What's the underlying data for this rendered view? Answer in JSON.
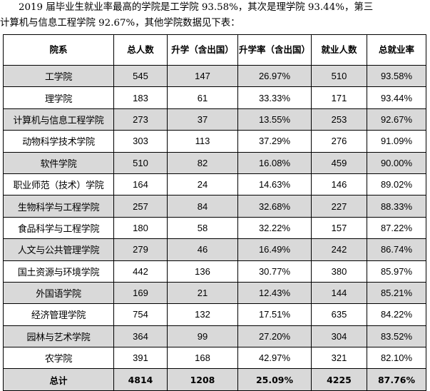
{
  "intro": {
    "line1": "2019 届毕业生就业率最高的学院是工学院 93.58%，其次是理学院 93.44%，第三",
    "line2": "计算机与信息工程学院 92.67%，其他学院数据见下表："
  },
  "table": {
    "headers": [
      "院系",
      "总人数",
      "升学（含出国）",
      "升学率（含出国）",
      "就业人数",
      "总就业率"
    ],
    "rows": [
      [
        "工学院",
        "545",
        "147",
        "26.97%",
        "510",
        "93.58%"
      ],
      [
        "理学院",
        "183",
        "61",
        "33.33%",
        "171",
        "93.44%"
      ],
      [
        "计算机与信息工程学院",
        "273",
        "37",
        "13.55%",
        "253",
        "92.67%"
      ],
      [
        "动物科学技术学院",
        "303",
        "113",
        "37.29%",
        "276",
        "91.09%"
      ],
      [
        "软件学院",
        "510",
        "82",
        "16.08%",
        "459",
        "90.00%"
      ],
      [
        "职业师范（技术）学院",
        "164",
        "24",
        "14.63%",
        "146",
        "89.02%"
      ],
      [
        "生物科学与工程学院",
        "257",
        "84",
        "32.68%",
        "227",
        "88.33%"
      ],
      [
        "食品科学与工程学院",
        "180",
        "58",
        "32.22%",
        "157",
        "87.22%"
      ],
      [
        "人文与公共管理学院",
        "279",
        "46",
        "16.49%",
        "242",
        "86.74%"
      ],
      [
        "国土资源与环境学院",
        "442",
        "136",
        "30.77%",
        "380",
        "85.97%"
      ],
      [
        "外国语学院",
        "169",
        "21",
        "12.43%",
        "144",
        "85.21%"
      ],
      [
        "经济管理学院",
        "754",
        "132",
        "17.51%",
        "635",
        "84.22%"
      ],
      [
        "园林与艺术学院",
        "364",
        "99",
        "27.20%",
        "304",
        "83.52%"
      ],
      [
        "农学院",
        "391",
        "168",
        "42.97%",
        "321",
        "82.10%"
      ]
    ],
    "total": [
      "总计",
      "4814",
      "1208",
      "25.09%",
      "4225",
      "87.76%"
    ]
  }
}
